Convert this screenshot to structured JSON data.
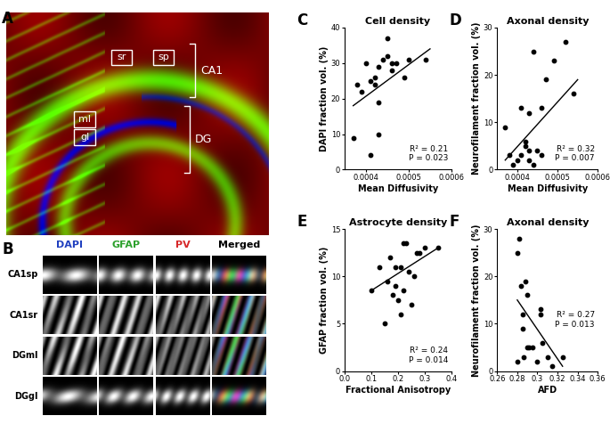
{
  "panels": {
    "A": {
      "letter": "A",
      "regions": [
        "sr",
        "sp",
        "CA1",
        "ml",
        "gl",
        "DG"
      ]
    },
    "B": {
      "letter": "B",
      "columns": [
        "DAPI",
        "GFAP",
        "PV",
        "Merged"
      ],
      "rows": [
        "CA1sp",
        "CA1sr",
        "DGml",
        "DGgl"
      ]
    }
  },
  "chart_data": [
    {
      "type": "scatter",
      "panel": "C",
      "title": "Cell density",
      "x_label": "Mean Diffusivity",
      "y_label": "DAPI fraction vol. (%)",
      "x": [
        0.00037,
        0.00038,
        0.00039,
        0.0004,
        0.00041,
        0.00041,
        0.00042,
        0.00042,
        0.00043,
        0.00043,
        0.00043,
        0.00044,
        0.00045,
        0.00045,
        0.00046,
        0.00046,
        0.00047,
        0.00049,
        0.0005,
        0.00054
      ],
      "values": [
        9,
        24,
        22,
        30,
        4,
        25,
        26,
        24,
        29,
        10,
        19,
        31,
        32,
        37,
        30,
        28,
        30,
        26,
        31,
        31
      ],
      "fit_line": {
        "x": [
          0.00037,
          0.00055
        ],
        "y": [
          18,
          34
        ]
      },
      "xlim": [
        0.00035,
        0.0006
      ],
      "xticks": [
        0.0004,
        0.0005,
        0.0006
      ],
      "ylim": [
        0,
        40
      ],
      "yticks": [
        0,
        10,
        20,
        30,
        40
      ],
      "annotations": [
        "R² = 0.21",
        "P = 0.023"
      ],
      "color": "#000000",
      "marker": "o",
      "grid": false
    },
    {
      "type": "scatter",
      "panel": "D",
      "title": "Axonal density",
      "x_label": "Mean Diffusivity",
      "y_label": "Neurofilament fraction vol. (%)",
      "x": [
        0.00037,
        0.00038,
        0.00039,
        0.0004,
        0.00041,
        0.00041,
        0.00042,
        0.00042,
        0.00043,
        0.00043,
        0.00044,
        0.00044,
        0.00045,
        0.00046,
        0.00046,
        0.00047,
        0.00049,
        0.00052,
        0.00054,
        0.00043
      ],
      "values": [
        9,
        3,
        1,
        2,
        13,
        3,
        5,
        6,
        12,
        2,
        25,
        1,
        4,
        13,
        3,
        19,
        23,
        27,
        16,
        4
      ],
      "fit_line": {
        "x": [
          0.00037,
          0.00055
        ],
        "y": [
          2,
          19
        ]
      },
      "xlim": [
        0.00035,
        0.0006
      ],
      "xticks": [
        0.0004,
        0.0005,
        0.0006
      ],
      "ylim": [
        0,
        30
      ],
      "yticks": [
        0,
        10,
        20,
        30
      ],
      "annotations": [
        "R² = 0.32",
        "P = 0.007"
      ],
      "color": "#000000",
      "marker": "o",
      "grid": false
    },
    {
      "type": "scatter",
      "panel": "E",
      "title": "Astrocyte density",
      "x_label": "Fractional Anisotropy",
      "y_label": "GFAP fraction vol. (%)",
      "x": [
        0.1,
        0.13,
        0.15,
        0.16,
        0.17,
        0.18,
        0.19,
        0.19,
        0.2,
        0.21,
        0.21,
        0.22,
        0.23,
        0.24,
        0.25,
        0.26,
        0.27,
        0.28,
        0.3,
        0.35,
        0.22
      ],
      "values": [
        8.5,
        11,
        5,
        9.5,
        12,
        8,
        9,
        11,
        7.5,
        6,
        11,
        13.5,
        13.5,
        10.5,
        7,
        10,
        12.5,
        12.5,
        13,
        13,
        8.5
      ],
      "fit_line": {
        "x": [
          0.1,
          0.35
        ],
        "y": [
          8.5,
          13
        ]
      },
      "xlim": [
        0.0,
        0.4
      ],
      "xticks": [
        0.0,
        0.1,
        0.2,
        0.3,
        0.4
      ],
      "ylim": [
        0,
        15
      ],
      "yticks": [
        0,
        5,
        10,
        15
      ],
      "annotations": [
        "R² = 0.24",
        "P = 0.014"
      ],
      "color": "#000000",
      "marker": "o",
      "grid": false
    },
    {
      "type": "scatter",
      "panel": "F",
      "title": "Axonal density",
      "x_label": "AFD",
      "y_label": "Neurofilament fraction vol. (%)",
      "x": [
        0.28,
        0.28,
        0.282,
        0.284,
        0.285,
        0.285,
        0.286,
        0.288,
        0.29,
        0.292,
        0.295,
        0.3,
        0.303,
        0.303,
        0.305,
        0.31,
        0.315,
        0.325,
        0.29
      ],
      "values": [
        25,
        2,
        28,
        18,
        12,
        9,
        3,
        19,
        5,
        5,
        5,
        2,
        13,
        12,
        6,
        3,
        1,
        3,
        16
      ],
      "fit_line": {
        "x": [
          0.28,
          0.325
        ],
        "y": [
          15,
          1
        ]
      },
      "xlim": [
        0.26,
        0.36
      ],
      "xticks": [
        0.26,
        0.28,
        0.3,
        0.32,
        0.34,
        0.36
      ],
      "ylim": [
        0,
        30
      ],
      "yticks": [
        0,
        10,
        20,
        30
      ],
      "annotations": [
        "R² = 0.27",
        "P = 0.013"
      ],
      "color": "#000000",
      "marker": "o",
      "grid": false
    }
  ]
}
